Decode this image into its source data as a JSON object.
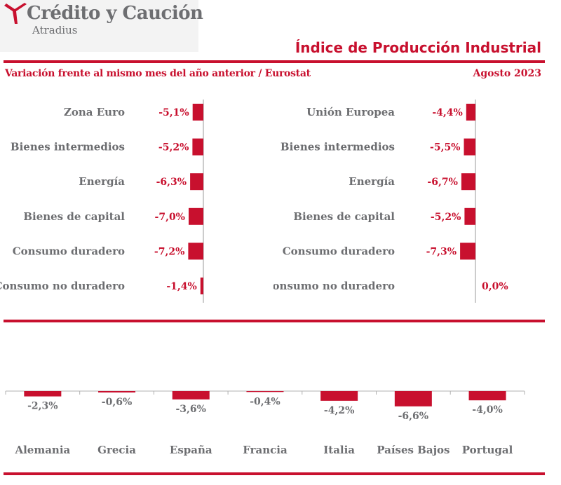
{
  "header": {
    "brand": "Crédito y Caución",
    "brand_sub": "Atradius",
    "title": "Índice de Producción Industrial",
    "subtitle": "Variación frente al mismo mes del año anterior / Eurostat",
    "period": "Agosto  2023"
  },
  "colors": {
    "accent": "#c8102e",
    "text_gray": "#6d6e71",
    "logo_bg": "#f3f3f3"
  },
  "chart_data": [
    {
      "type": "bar",
      "orientation": "horizontal",
      "categories": [
        "Zona Euro",
        "Bienes intermedios",
        "Energía",
        "Bienes de capital",
        "Consumo duradero",
        "Consumo no duradero"
      ],
      "values": [
        -5.1,
        -5.2,
        -6.3,
        -7.0,
        -7.2,
        -1.4
      ],
      "value_labels": [
        "-5,1%",
        "-5,2%",
        "-6,3%",
        "-7,0%",
        "-7,2%",
        "-1,4%"
      ]
    },
    {
      "type": "bar",
      "orientation": "horizontal",
      "categories": [
        "Unión Europea",
        "Bienes intermedios",
        "Energía",
        "Bienes de capital",
        "Consumo duradero",
        "Consumo no duradero"
      ],
      "values": [
        -4.4,
        -5.5,
        -6.7,
        -5.2,
        -7.3,
        0.0
      ],
      "value_labels": [
        "-4,4%",
        "-5,5%",
        "-6,7%",
        "-5,2%",
        "-7,3%",
        "0,0%"
      ]
    },
    {
      "type": "bar",
      "orientation": "vertical",
      "categories": [
        "Alemania",
        "Grecia",
        "España",
        "Francia",
        "Italia",
        "Países Bajos",
        "Portugal"
      ],
      "values": [
        -2.3,
        -0.6,
        -3.6,
        -0.4,
        -4.2,
        -6.6,
        -4.0
      ],
      "value_labels": [
        "-2,3%",
        "-0,6%",
        "-3,6%",
        "-0,4%",
        "-4,2%",
        "-6,6%",
        "-4,0%"
      ]
    }
  ]
}
